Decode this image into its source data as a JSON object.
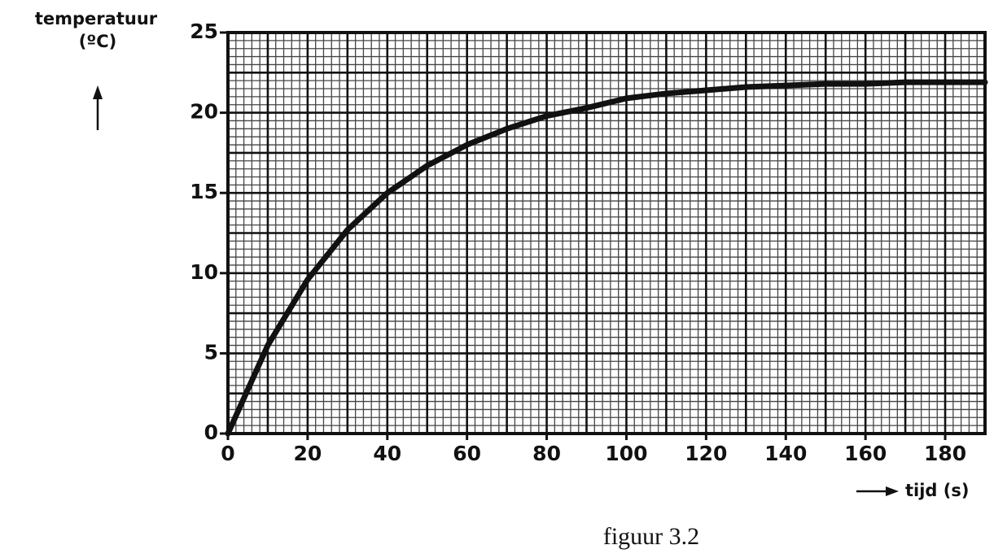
{
  "chart_data": {
    "type": "line",
    "y_label": "temperatuur",
    "y_unit": "(ºC)",
    "x_label": "tijd (s)",
    "caption": "figuur 3.2",
    "x": [
      0,
      10,
      20,
      30,
      40,
      50,
      60,
      70,
      80,
      90,
      100,
      110,
      120,
      130,
      140,
      150,
      160,
      170,
      180,
      190
    ],
    "series": [
      {
        "color": "#111111",
        "values": [
          0,
          5.5,
          9.6,
          12.7,
          15.0,
          16.7,
          18.0,
          19.0,
          19.8,
          20.3,
          20.9,
          21.2,
          21.4,
          21.6,
          21.7,
          21.8,
          21.8,
          21.9,
          21.9,
          21.9
        ]
      }
    ],
    "xlim": [
      0,
      190
    ],
    "ylim": [
      0,
      25
    ],
    "xticks": [
      0,
      20,
      40,
      60,
      80,
      100,
      120,
      140,
      160,
      180
    ],
    "yticks": [
      0,
      5,
      10,
      15,
      20,
      25
    ],
    "grid": true,
    "grid_major": {
      "x": 10,
      "y": 2.5
    },
    "grid_minor": {
      "x": 2,
      "y": 0.5
    }
  }
}
